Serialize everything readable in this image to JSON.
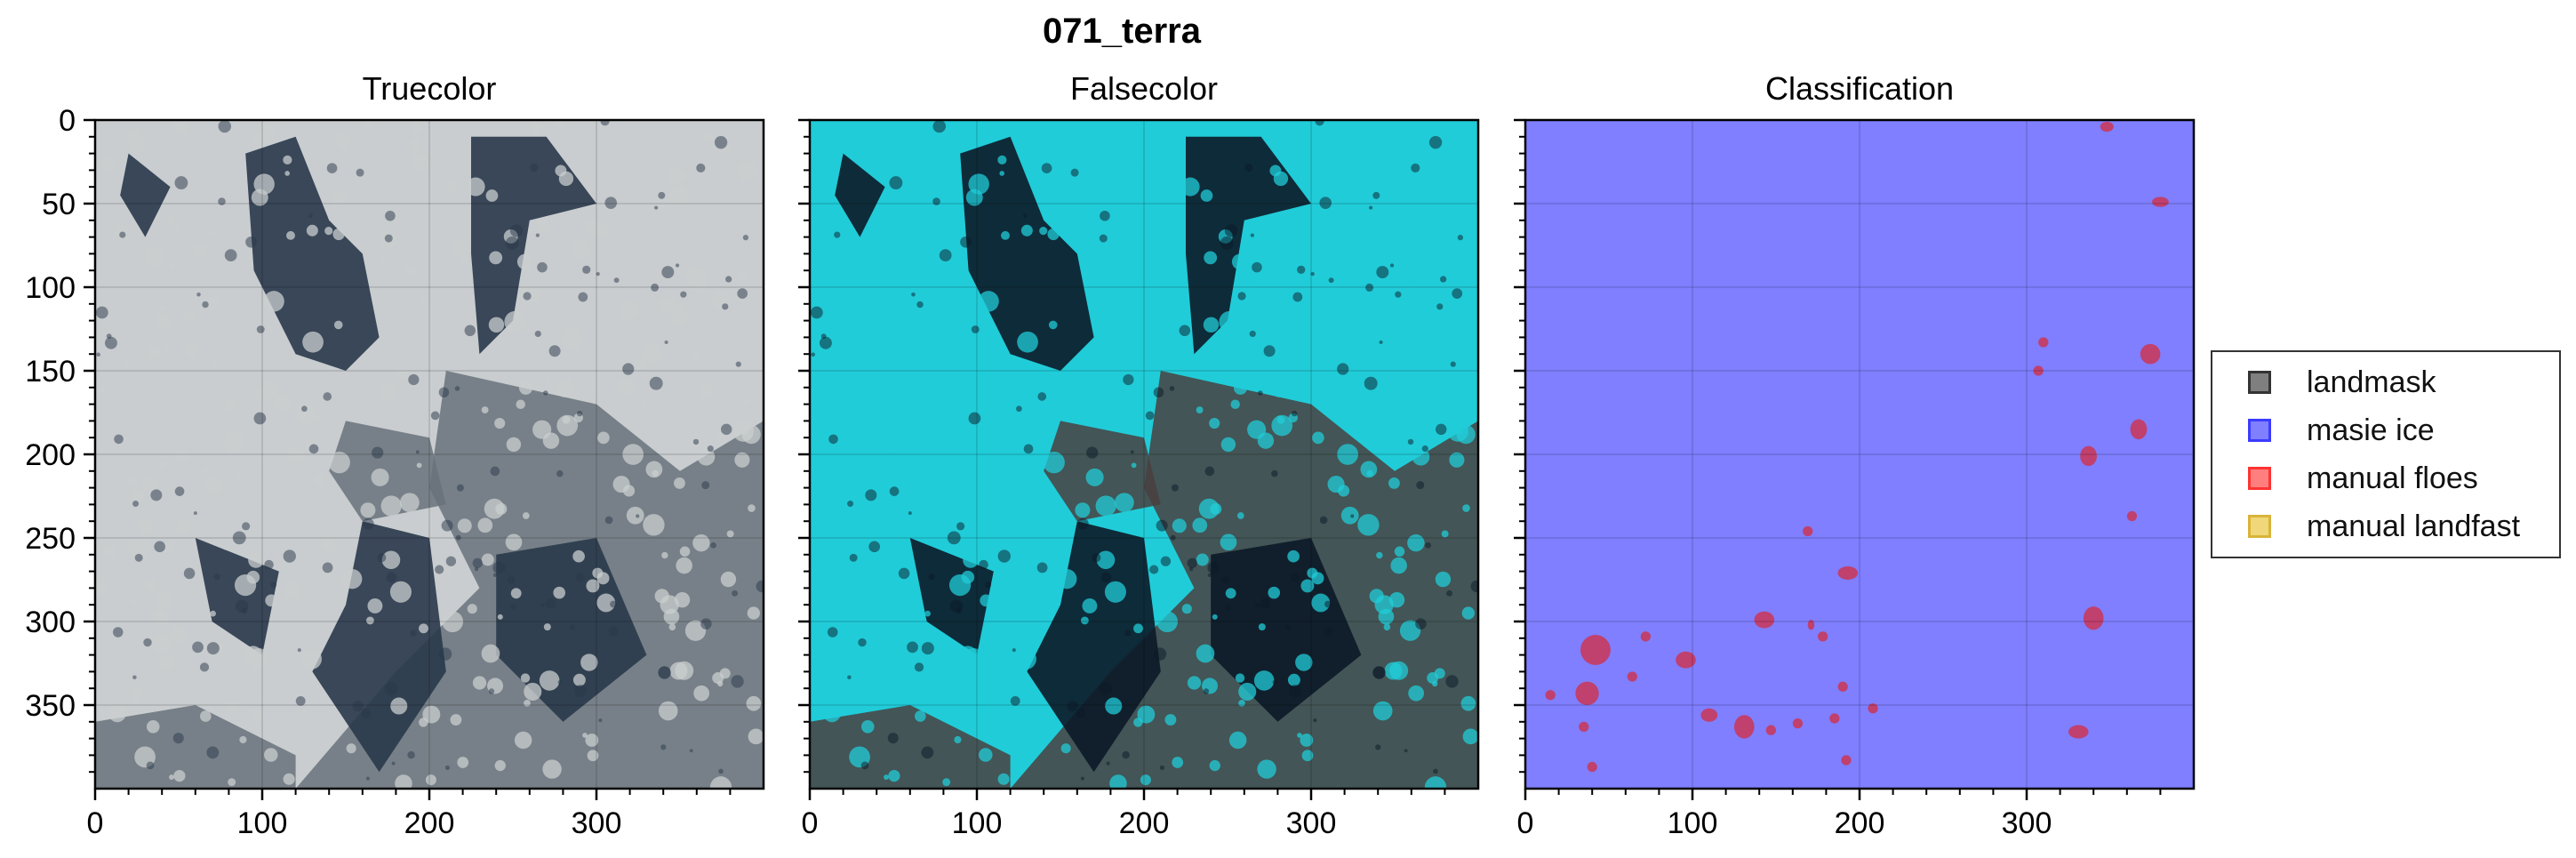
{
  "figure": {
    "title": "071_terra"
  },
  "legend": {
    "items": [
      {
        "label": "landmask",
        "fill": "#7f7f7f",
        "edge": "#333333"
      },
      {
        "label": "masie ice",
        "fill": "#7f7fff",
        "edge": "#3b3bff"
      },
      {
        "label": "manual floes",
        "fill": "#ff7f7f",
        "edge": "#ff3333"
      },
      {
        "label": "manual landfast",
        "fill": "#f0d87a",
        "edge": "#d9b43a"
      }
    ]
  },
  "chart_data": [
    {
      "type": "heatmap",
      "title": "Truecolor",
      "xlim": [
        0,
        400
      ],
      "ylim": [
        400,
        0
      ],
      "xticks": [
        0,
        100,
        200,
        300
      ],
      "yticks": [
        0,
        50,
        100,
        150,
        200,
        250,
        300,
        350
      ],
      "show_xtick_labels": true,
      "show_ytick_labels": true,
      "grid": true,
      "colors": {
        "ice": "#c9cdcf",
        "water": "#29384a",
        "gray": "#69727b"
      }
    },
    {
      "type": "heatmap",
      "title": "Falsecolor",
      "xlim": [
        0,
        400
      ],
      "ylim": [
        400,
        0
      ],
      "xticks": [
        0,
        100,
        200,
        300
      ],
      "yticks": [
        0,
        50,
        100,
        150,
        200,
        250,
        300,
        350
      ],
      "show_xtick_labels": true,
      "show_ytick_labels": false,
      "grid": true,
      "colors": {
        "ice": "#20ccd8",
        "water": "#0c1a28",
        "gray": "#4a3f3f"
      }
    },
    {
      "type": "heatmap",
      "title": "Classification",
      "xlim": [
        0,
        400
      ],
      "ylim": [
        400,
        0
      ],
      "xticks": [
        0,
        100,
        200,
        300
      ],
      "yticks": [
        0,
        50,
        100,
        150,
        200,
        250,
        300,
        350
      ],
      "show_xtick_labels": true,
      "show_ytick_labels": false,
      "grid": true,
      "colors": {
        "background": "#7f7fff",
        "floe": "#c0406e"
      },
      "floes": [
        [
          348,
          4,
          4,
          3
        ],
        [
          380,
          49,
          5,
          3
        ],
        [
          374,
          140,
          6,
          6
        ],
        [
          310,
          133,
          3,
          3
        ],
        [
          307,
          150,
          3,
          3
        ],
        [
          367,
          185,
          5,
          6
        ],
        [
          337,
          201,
          5,
          6
        ],
        [
          363,
          237,
          3,
          3
        ],
        [
          340,
          298,
          6,
          7
        ],
        [
          169,
          246,
          3,
          3
        ],
        [
          193,
          271,
          6,
          4
        ],
        [
          143,
          299,
          6,
          5
        ],
        [
          171,
          302,
          2,
          3
        ],
        [
          178,
          309,
          3,
          3
        ],
        [
          42,
          317,
          9,
          9
        ],
        [
          72,
          309,
          3,
          3
        ],
        [
          96,
          323,
          6,
          5
        ],
        [
          64,
          333,
          3,
          3
        ],
        [
          15,
          344,
          3,
          3
        ],
        [
          37,
          343,
          7,
          7
        ],
        [
          190,
          339,
          3,
          3
        ],
        [
          208,
          352,
          3,
          3
        ],
        [
          110,
          356,
          5,
          4
        ],
        [
          131,
          363,
          6,
          7
        ],
        [
          147,
          365,
          3,
          3
        ],
        [
          163,
          361,
          3,
          3
        ],
        [
          185,
          358,
          3,
          3
        ],
        [
          35,
          363,
          3,
          3
        ],
        [
          331,
          366,
          6,
          4
        ],
        [
          192,
          383,
          3,
          3
        ],
        [
          40,
          387,
          3,
          3
        ]
      ]
    }
  ]
}
